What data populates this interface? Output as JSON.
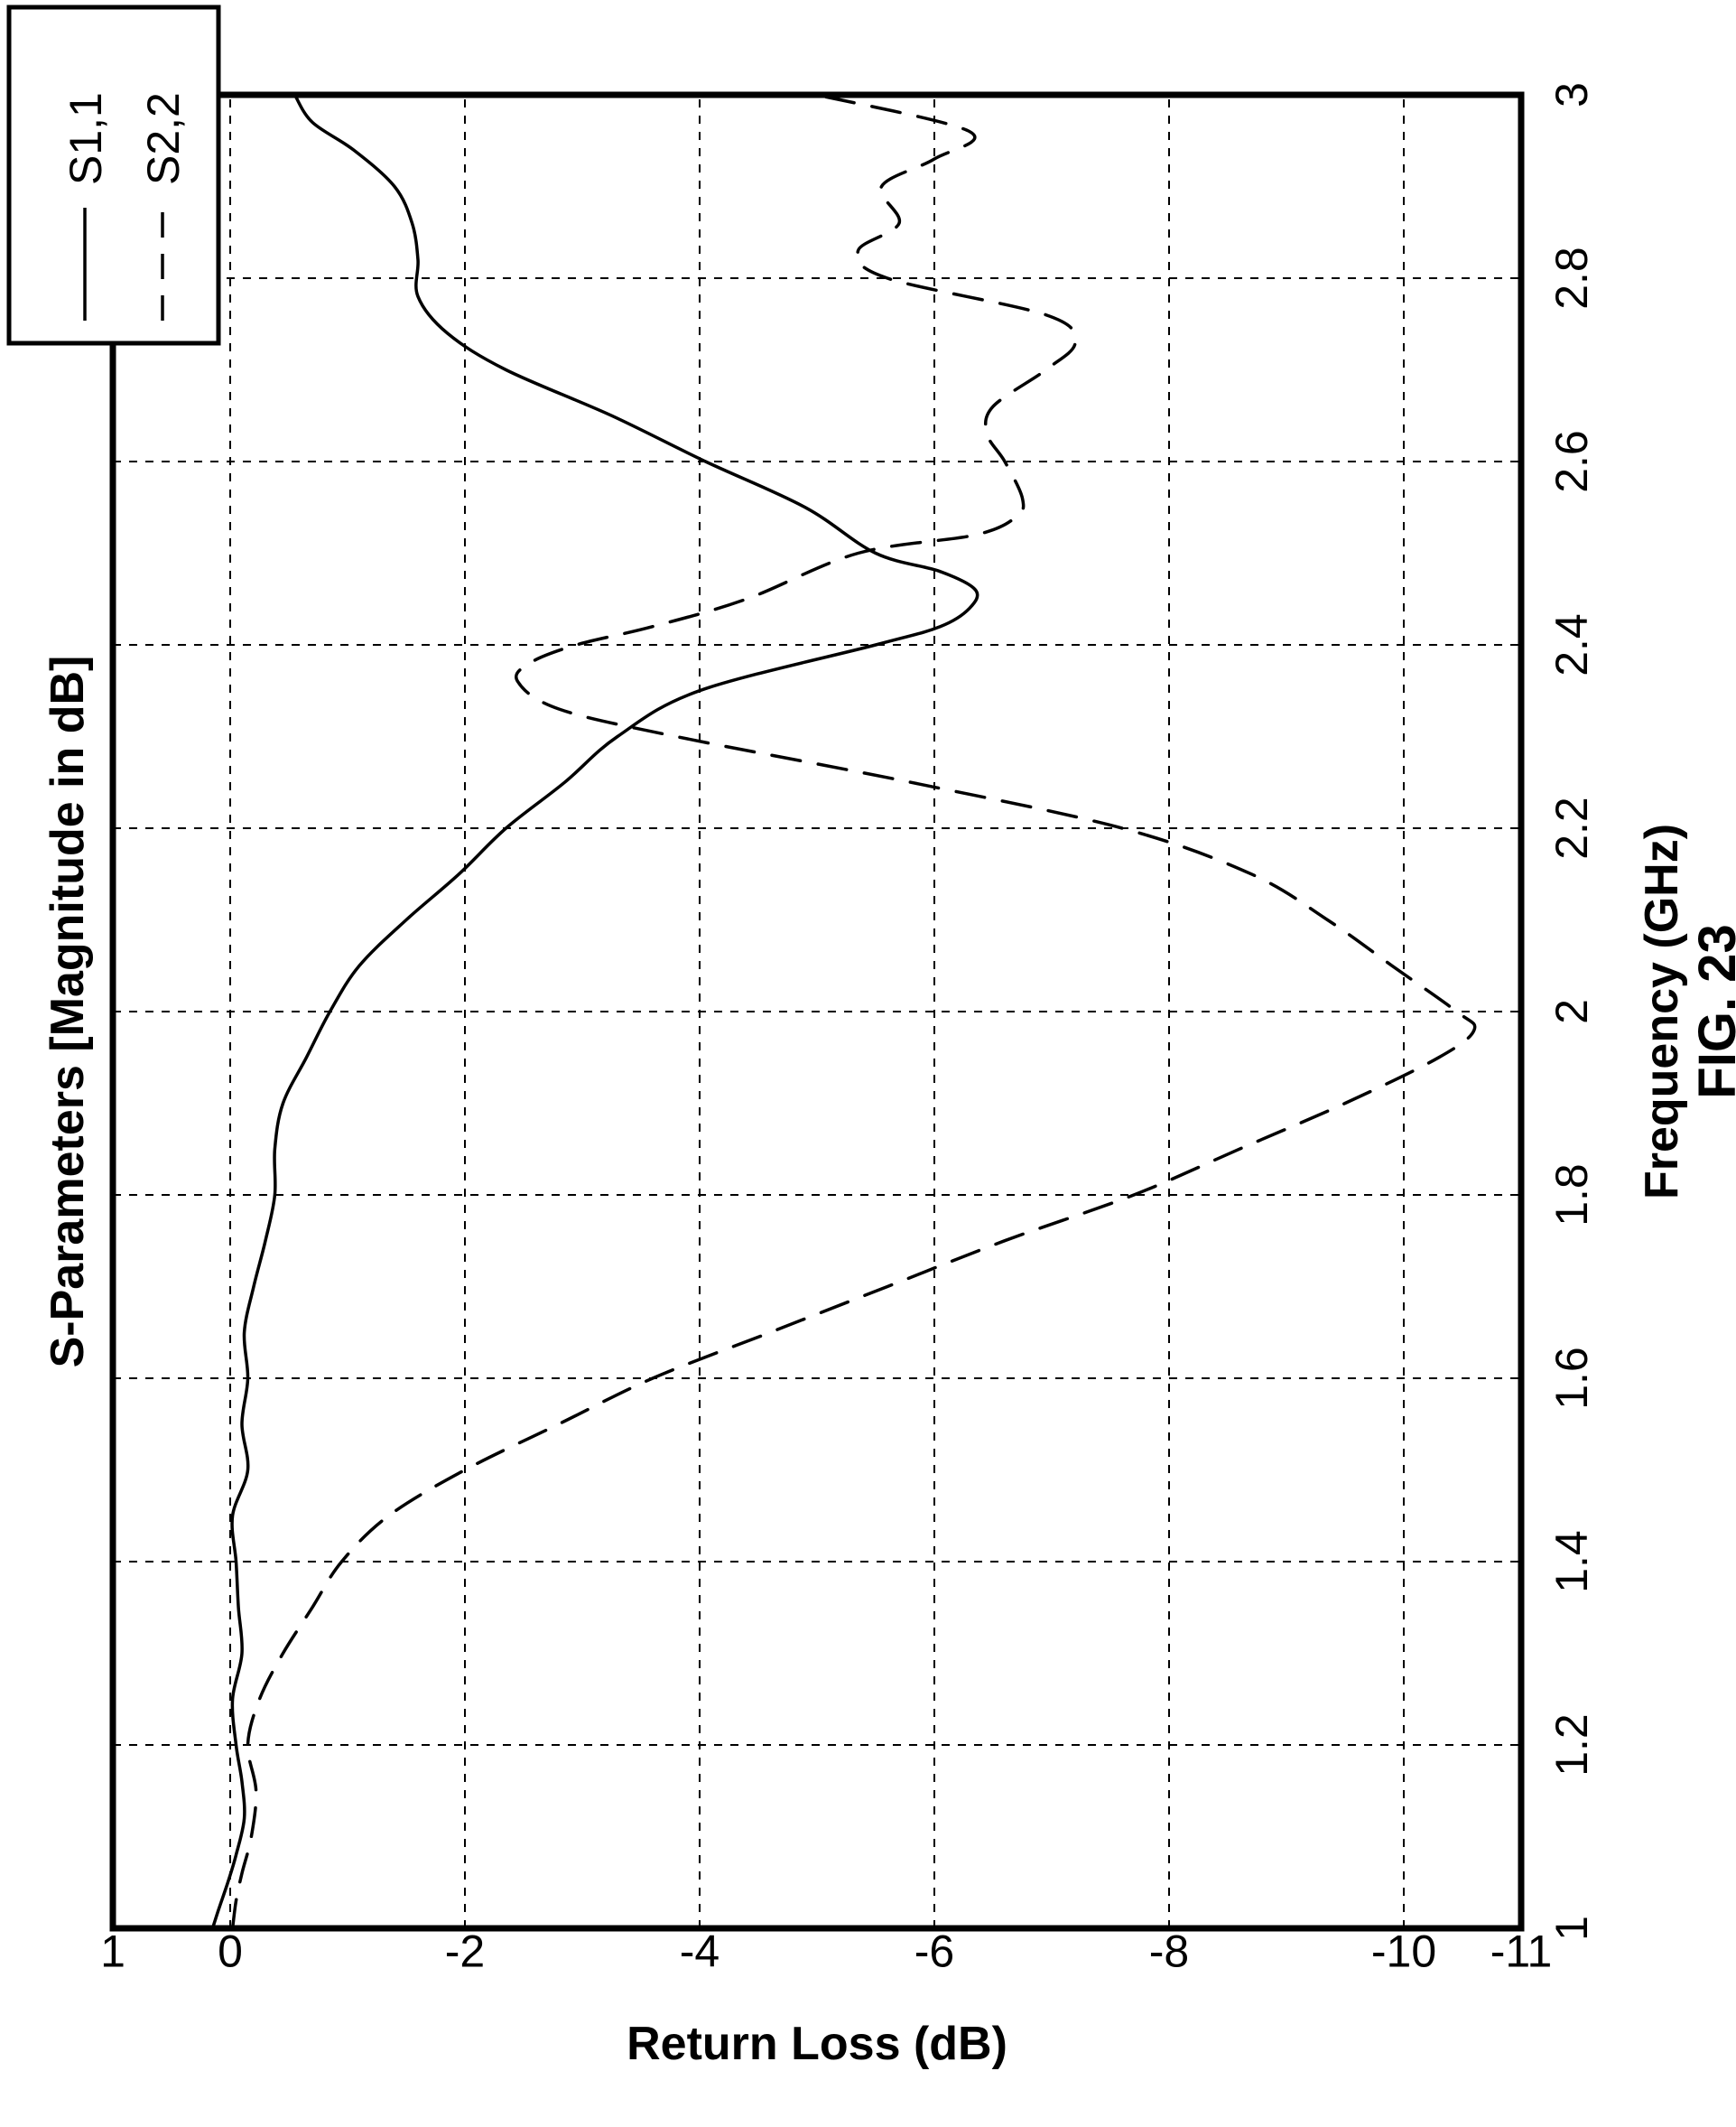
{
  "chart_data": {
    "type": "line",
    "title": "S-Parameters [Magnitude in dB]",
    "xlabel": "Frequency (GHz)",
    "ylabel": "Return Loss (dB)",
    "caption": "FIG. 23",
    "xlim": [
      1,
      3
    ],
    "ylim": [
      -11,
      1
    ],
    "x_ticks": [
      "1",
      "1.2",
      "1.4",
      "1.6",
      "1.8",
      "2",
      "2.2",
      "2.4",
      "2.6",
      "2.8",
      "3"
    ],
    "x_tick_values": [
      1,
      1.2,
      1.4,
      1.6,
      1.8,
      2,
      2.2,
      2.4,
      2.6,
      2.8,
      3
    ],
    "y_ticks": [
      "1",
      "0",
      "-2",
      "-4",
      "-6",
      "-8",
      "-10",
      "-11"
    ],
    "y_tick_values": [
      1,
      0,
      -2,
      -4,
      -6,
      -8,
      -10,
      -11
    ],
    "grid": true,
    "orientation": "rotated 90° counter-clockwise",
    "legend": {
      "position": "top-right"
    },
    "series": [
      {
        "name": "S1,1",
        "style": "solid",
        "color": "#000000",
        "x": [
          1.0,
          1.02,
          1.05,
          1.08,
          1.12,
          1.16,
          1.2,
          1.25,
          1.3,
          1.35,
          1.4,
          1.45,
          1.5,
          1.55,
          1.6,
          1.65,
          1.7,
          1.75,
          1.8,
          1.85,
          1.9,
          1.95,
          2.0,
          2.05,
          2.1,
          2.15,
          2.2,
          2.25,
          2.3,
          2.35,
          2.4,
          2.42,
          2.44,
          2.46,
          2.48,
          2.5,
          2.55,
          2.6,
          2.65,
          2.7,
          2.74,
          2.78,
          2.82,
          2.86,
          2.9,
          2.94,
          2.97,
          3.0
        ],
        "y": [
          0.15,
          0.1,
          0.02,
          -0.05,
          -0.12,
          -0.1,
          -0.05,
          -0.02,
          -0.1,
          -0.07,
          -0.05,
          -0.02,
          -0.15,
          -0.1,
          -0.15,
          -0.12,
          -0.2,
          -0.3,
          -0.38,
          -0.38,
          -0.45,
          -0.65,
          -0.85,
          -1.1,
          -1.5,
          -1.95,
          -2.35,
          -2.85,
          -3.3,
          -4.0,
          -5.5,
          -6.05,
          -6.3,
          -6.35,
          -6.05,
          -5.5,
          -4.9,
          -4.05,
          -3.25,
          -2.35,
          -1.85,
          -1.6,
          -1.6,
          -1.55,
          -1.4,
          -1.05,
          -0.7,
          -0.55
        ]
      },
      {
        "name": "S2,2",
        "style": "dashed",
        "color": "#000000",
        "x": [
          1.0,
          1.03,
          1.06,
          1.1,
          1.15,
          1.2,
          1.25,
          1.3,
          1.35,
          1.4,
          1.45,
          1.5,
          1.55,
          1.6,
          1.65,
          1.7,
          1.75,
          1.8,
          1.85,
          1.9,
          1.95,
          1.98,
          2.0,
          2.05,
          2.1,
          2.15,
          2.2,
          2.25,
          2.3,
          2.33,
          2.36,
          2.38,
          2.4,
          2.42,
          2.45,
          2.5,
          2.52,
          2.54,
          2.56,
          2.6,
          2.63,
          2.66,
          2.7,
          2.73,
          2.76,
          2.8,
          2.83,
          2.86,
          2.9,
          2.93,
          2.96,
          3.0
        ],
        "y": [
          -0.02,
          -0.05,
          -0.1,
          -0.18,
          -0.22,
          -0.15,
          -0.25,
          -0.45,
          -0.7,
          -0.95,
          -1.35,
          -2.0,
          -2.8,
          -3.6,
          -4.6,
          -5.6,
          -6.6,
          -7.7,
          -8.6,
          -9.5,
          -10.3,
          -10.6,
          -10.45,
          -9.9,
          -9.35,
          -8.7,
          -7.6,
          -5.8,
          -3.8,
          -2.8,
          -2.45,
          -2.55,
          -2.95,
          -3.6,
          -4.4,
          -5.35,
          -6.35,
          -6.7,
          -6.75,
          -6.6,
          -6.45,
          -6.5,
          -6.95,
          -7.2,
          -6.95,
          -5.6,
          -5.35,
          -5.7,
          -5.55,
          -6.0,
          -6.3,
          -5.0
        ]
      }
    ]
  }
}
